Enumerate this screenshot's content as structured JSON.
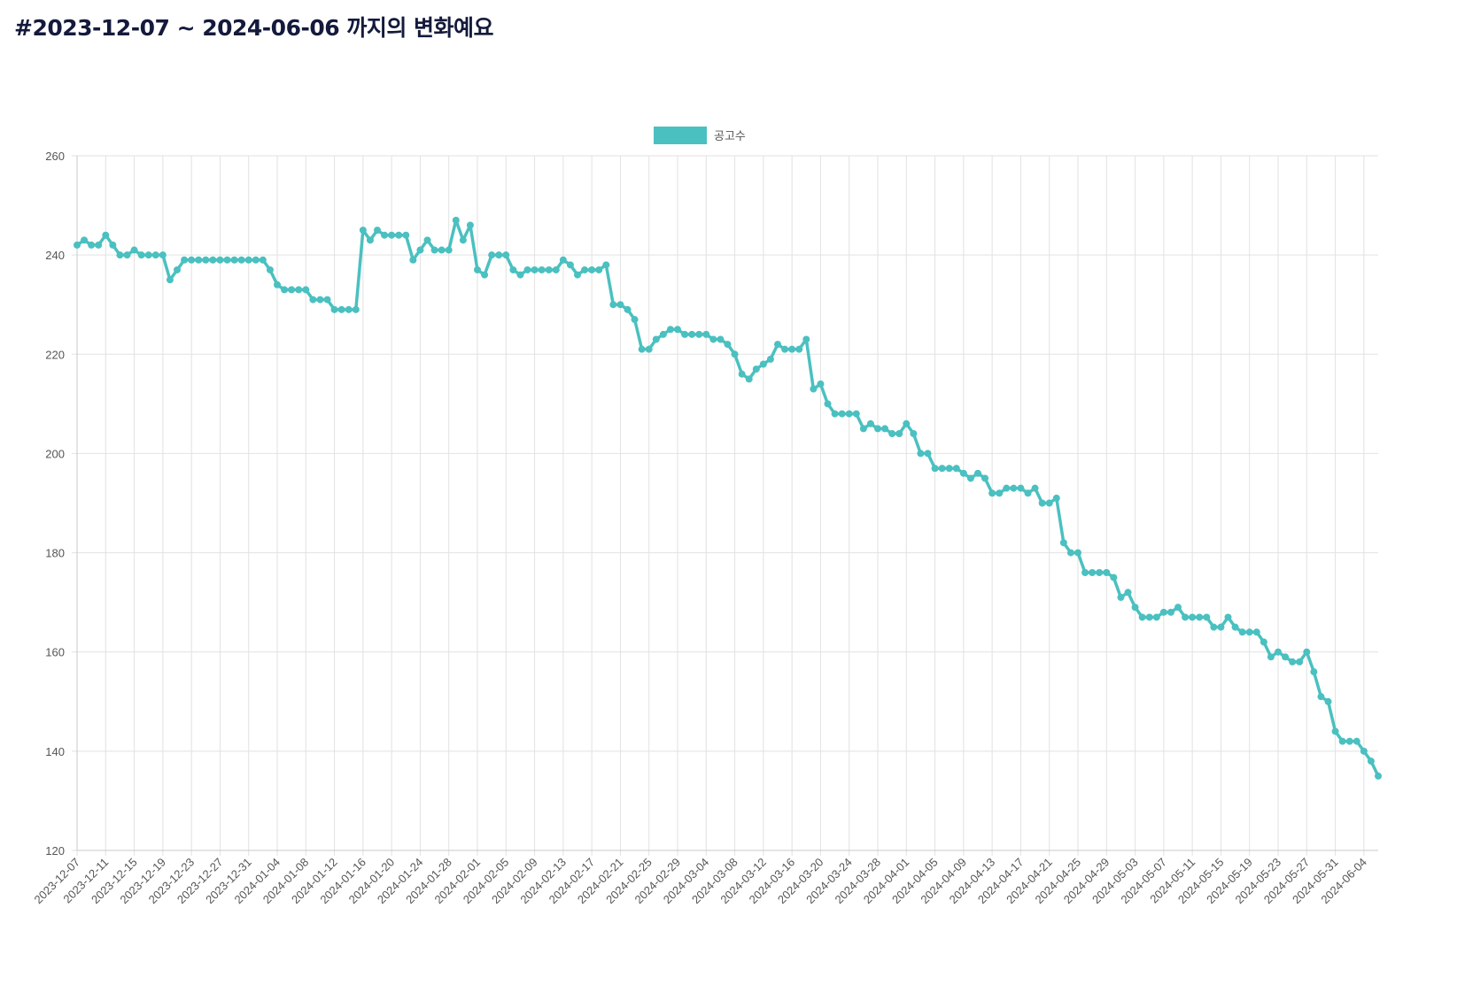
{
  "page": {
    "title": "#2023-12-07 ~ 2024-06-06 까지의 변화예요"
  },
  "chart_data": {
    "type": "line",
    "title": "",
    "xlabel": "",
    "ylabel": "",
    "x_start": "2023-12-07",
    "x_end": "2024-06-06",
    "x_step": "1 day",
    "x_tick_every": 4,
    "x_tick_labels": [
      "2023-12-07",
      "2023-12-11",
      "2023-12-15",
      "2023-12-19",
      "2023-12-23",
      "2023-12-27",
      "2023-12-31",
      "2024-01-04",
      "2024-01-08",
      "2024-01-12",
      "2024-01-16",
      "2024-01-20",
      "2024-01-24",
      "2024-01-28",
      "2024-02-01",
      "2024-02-05",
      "2024-02-09",
      "2024-02-13",
      "2024-02-17",
      "2024-02-21",
      "2024-02-25",
      "2024-02-29",
      "2024-03-04",
      "2024-03-08",
      "2024-03-12",
      "2024-03-16",
      "2024-03-20",
      "2024-03-24",
      "2024-03-28",
      "2024-04-01",
      "2024-04-05",
      "2024-04-09",
      "2024-04-13",
      "2024-04-17",
      "2024-04-21",
      "2024-04-25",
      "2024-04-29",
      "2024-05-03",
      "2024-05-07",
      "2024-05-11",
      "2024-05-15",
      "2024-05-19",
      "2024-05-23",
      "2024-05-27",
      "2024-05-31",
      "2024-06-04"
    ],
    "ylim": [
      120,
      260
    ],
    "y_ticks": [
      120,
      140,
      160,
      180,
      200,
      220,
      240,
      260
    ],
    "grid": true,
    "legend_position": "top-center",
    "series": [
      {
        "name": "공고수",
        "color": "#4bc0c0",
        "values": [
          242,
          243,
          242,
          242,
          244,
          242,
          240,
          240,
          241,
          240,
          240,
          240,
          240,
          235,
          237,
          239,
          239,
          239,
          239,
          239,
          239,
          239,
          239,
          239,
          239,
          239,
          239,
          237,
          234,
          233,
          233,
          233,
          233,
          231,
          231,
          231,
          229,
          229,
          229,
          229,
          245,
          243,
          245,
          244,
          244,
          244,
          244,
          239,
          241,
          243,
          241,
          241,
          241,
          247,
          243,
          246,
          237,
          236,
          240,
          240,
          240,
          237,
          236,
          237,
          237,
          237,
          237,
          237,
          239,
          238,
          236,
          237,
          237,
          237,
          238,
          230,
          230,
          229,
          227,
          221,
          221,
          223,
          224,
          225,
          225,
          224,
          224,
          224,
          224,
          223,
          223,
          222,
          220,
          216,
          215,
          217,
          218,
          219,
          222,
          221,
          221,
          221,
          223,
          213,
          214,
          210,
          208,
          208,
          208,
          208,
          205,
          206,
          205,
          205,
          204,
          204,
          206,
          204,
          200,
          200,
          197,
          197,
          197,
          197,
          196,
          195,
          196,
          195,
          192,
          192,
          193,
          193,
          193,
          192,
          193,
          190,
          190,
          191,
          182,
          180,
          180,
          176,
          176,
          176,
          176,
          175,
          171,
          172,
          169,
          167,
          167,
          167,
          168,
          168,
          169,
          167,
          167,
          167,
          167,
          165,
          165,
          167,
          165,
          164,
          164,
          164,
          162,
          159,
          160,
          159,
          158,
          158,
          160,
          156,
          151,
          150,
          144,
          142,
          142,
          142,
          140,
          138,
          135
        ]
      }
    ]
  }
}
